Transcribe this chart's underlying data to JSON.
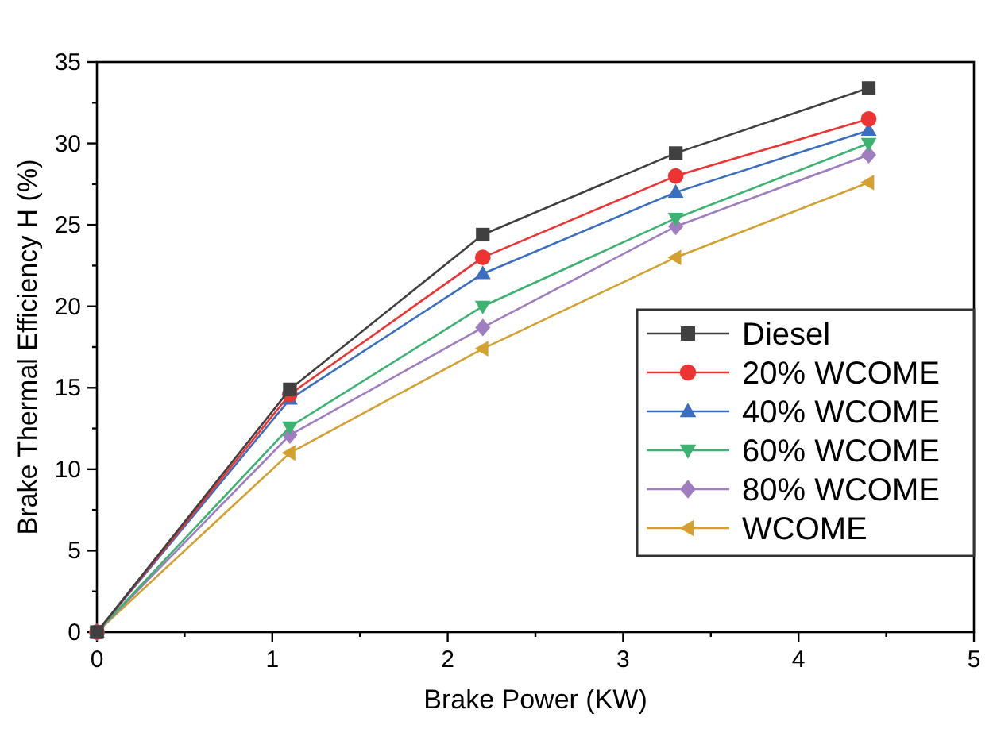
{
  "chart_data": {
    "type": "line",
    "xlabel": "Brake Power (KW)",
    "ylabel": "Brake Thermal Efficiency Η (%)",
    "x": [
      0,
      1.1,
      2.2,
      3.3,
      4.4
    ],
    "xlim": [
      0,
      5
    ],
    "xticks": [
      0,
      {
        "value": 0.5,
        "label": null
      },
      1,
      {
        "value": 1.5,
        "label": null
      },
      2,
      {
        "value": 2.5,
        "label": null
      },
      3,
      {
        "value": 3.5,
        "label": null
      },
      4,
      {
        "value": 4.5,
        "label": null
      },
      5
    ],
    "ylim": [
      0,
      35
    ],
    "yticks": [
      0,
      {
        "value": 2.5,
        "label": null
      },
      5,
      {
        "value": 7.5,
        "label": null
      },
      10,
      {
        "value": 12.5,
        "label": null
      },
      15,
      {
        "value": 17.5,
        "label": null
      },
      20,
      {
        "value": 22.5,
        "label": null
      },
      25,
      {
        "value": 27.5,
        "label": null
      },
      30,
      {
        "value": 32.5,
        "label": null
      },
      35
    ],
    "grid": false,
    "legend": "right",
    "series": [
      {
        "name": "Diesel",
        "color": "#404040",
        "marker": "square",
        "values": [
          0,
          14.9,
          24.4,
          29.4,
          33.4
        ]
      },
      {
        "name": "20% WCOME",
        "color": "#ee3333",
        "marker": "circle",
        "values": [
          0,
          14.6,
          23.0,
          28.0,
          31.5
        ]
      },
      {
        "name": "40% WCOME",
        "color": "#3a6fc0",
        "marker": "triangle",
        "values": [
          0,
          14.3,
          22.0,
          27.0,
          30.8
        ]
      },
      {
        "name": "60% WCOME",
        "color": "#3cb371",
        "marker": "triangle-down",
        "values": [
          0,
          12.6,
          20.0,
          25.4,
          30.0
        ]
      },
      {
        "name": "80% WCOME",
        "color": "#a07cc0",
        "marker": "diamond",
        "values": [
          0,
          12.1,
          18.7,
          24.9,
          29.3
        ]
      },
      {
        "name": "WCOME",
        "color": "#d4a030",
        "marker": "triangle-left",
        "values": [
          0,
          11.0,
          17.4,
          23.0,
          27.6
        ]
      }
    ]
  }
}
